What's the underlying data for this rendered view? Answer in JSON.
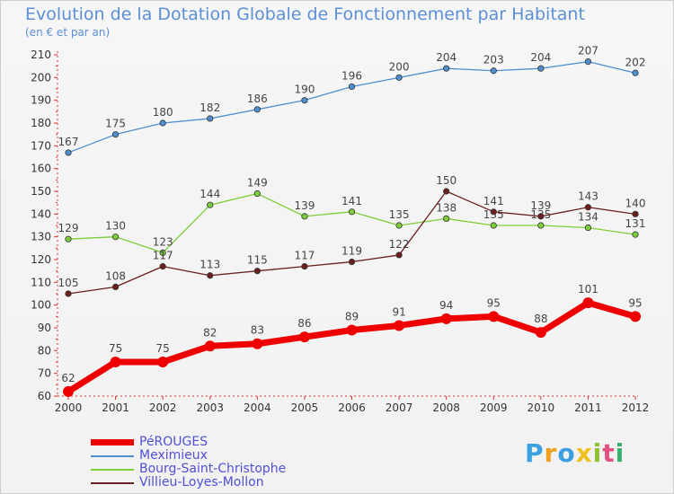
{
  "chart_data": {
    "type": "line",
    "title": "Evolution de la Dotation Globale de Fonctionnement par Habitant",
    "subtitle": "(en € et par an)",
    "x": [
      "2000",
      "2001",
      "2002",
      "2003",
      "2004",
      "2005",
      "2006",
      "2007",
      "2008",
      "2009",
      "2010",
      "2011",
      "2012"
    ],
    "yticks": [
      60,
      70,
      80,
      90,
      100,
      110,
      120,
      130,
      140,
      150,
      160,
      170,
      180,
      190,
      200,
      210
    ],
    "ylim": [
      60,
      210
    ],
    "grid": false,
    "legend_position": "bottom-left",
    "series": [
      {
        "name": "PéROUGES",
        "color": "#ee0000",
        "values": [
          62,
          75,
          75,
          82,
          83,
          86,
          89,
          91,
          94,
          95,
          88,
          101,
          95
        ]
      },
      {
        "name": "Meximieux",
        "color": "#4f8fcf",
        "values": [
          167,
          175,
          180,
          182,
          186,
          190,
          196,
          200,
          204,
          203,
          204,
          207,
          202
        ]
      },
      {
        "name": "Bourg-Saint-Christophe",
        "color": "#7ccf3a",
        "values": [
          129,
          130,
          123,
          144,
          149,
          139,
          141,
          135,
          138,
          135,
          135,
          134,
          131
        ]
      },
      {
        "name": "Villieu-Loyes-Mollon",
        "color": "#6b1f1f",
        "values": [
          105,
          108,
          117,
          113,
          115,
          117,
          119,
          122,
          150,
          141,
          139,
          143,
          140
        ]
      }
    ]
  },
  "brand": {
    "letters": [
      {
        "char": "P",
        "color": "#3aa0e0"
      },
      {
        "char": "r",
        "color": "#f0a020"
      },
      {
        "char": "o",
        "color": "#3aa0e0"
      },
      {
        "char": "x",
        "color": "#f0c020"
      },
      {
        "char": "i",
        "color": "#90c030"
      },
      {
        "char": "t",
        "color": "#e05080"
      },
      {
        "char": "i",
        "color": "#3ab070"
      }
    ]
  }
}
